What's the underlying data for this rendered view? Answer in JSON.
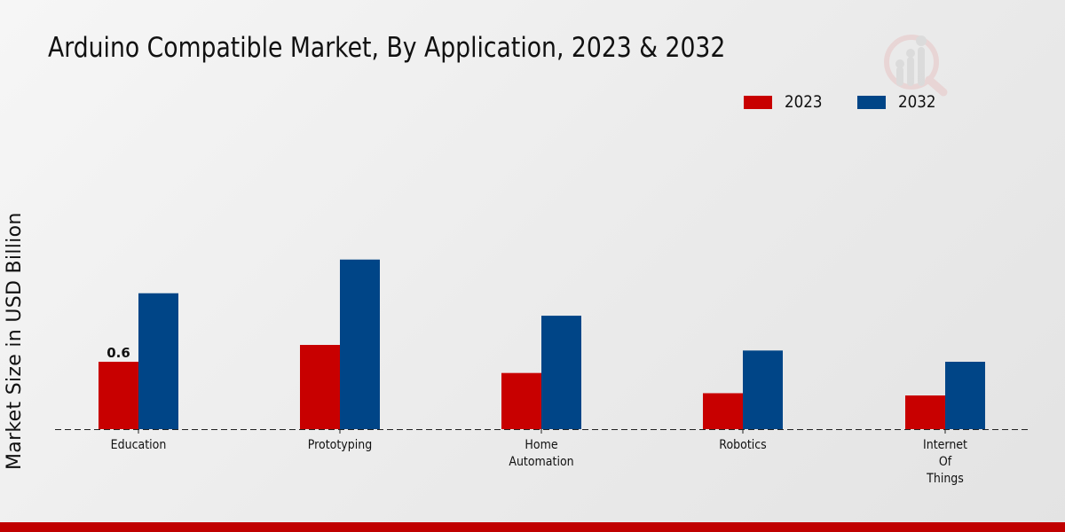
{
  "chart_data": {
    "type": "bar",
    "title": "Arduino Compatible Market, By Application, 2023 & 2032",
    "xlabel": "",
    "ylabel": "Market Size in USD Billion",
    "categories": [
      "Education",
      "Prototyping",
      "Home Automation",
      "Robotics",
      "Internet Of Things"
    ],
    "category_lines": [
      [
        "Education"
      ],
      [
        "Prototyping"
      ],
      [
        "Home",
        "Automation"
      ],
      [
        "Robotics"
      ],
      [
        "Internet",
        "Of",
        "Things"
      ]
    ],
    "series": [
      {
        "name": "2023",
        "color": "#c80000",
        "values": [
          0.6,
          0.75,
          0.5,
          0.32,
          0.3
        ]
      },
      {
        "name": "2032",
        "color": "#004587",
        "values": [
          1.21,
          1.51,
          1.01,
          0.7,
          0.6
        ]
      }
    ],
    "data_labels": [
      {
        "series": 0,
        "index": 0,
        "text": "0.6"
      }
    ],
    "ylim": [
      0,
      2.2
    ],
    "grid": false,
    "legend_position": "top-right"
  },
  "colors": {
    "accent_footer": "#c00000"
  }
}
